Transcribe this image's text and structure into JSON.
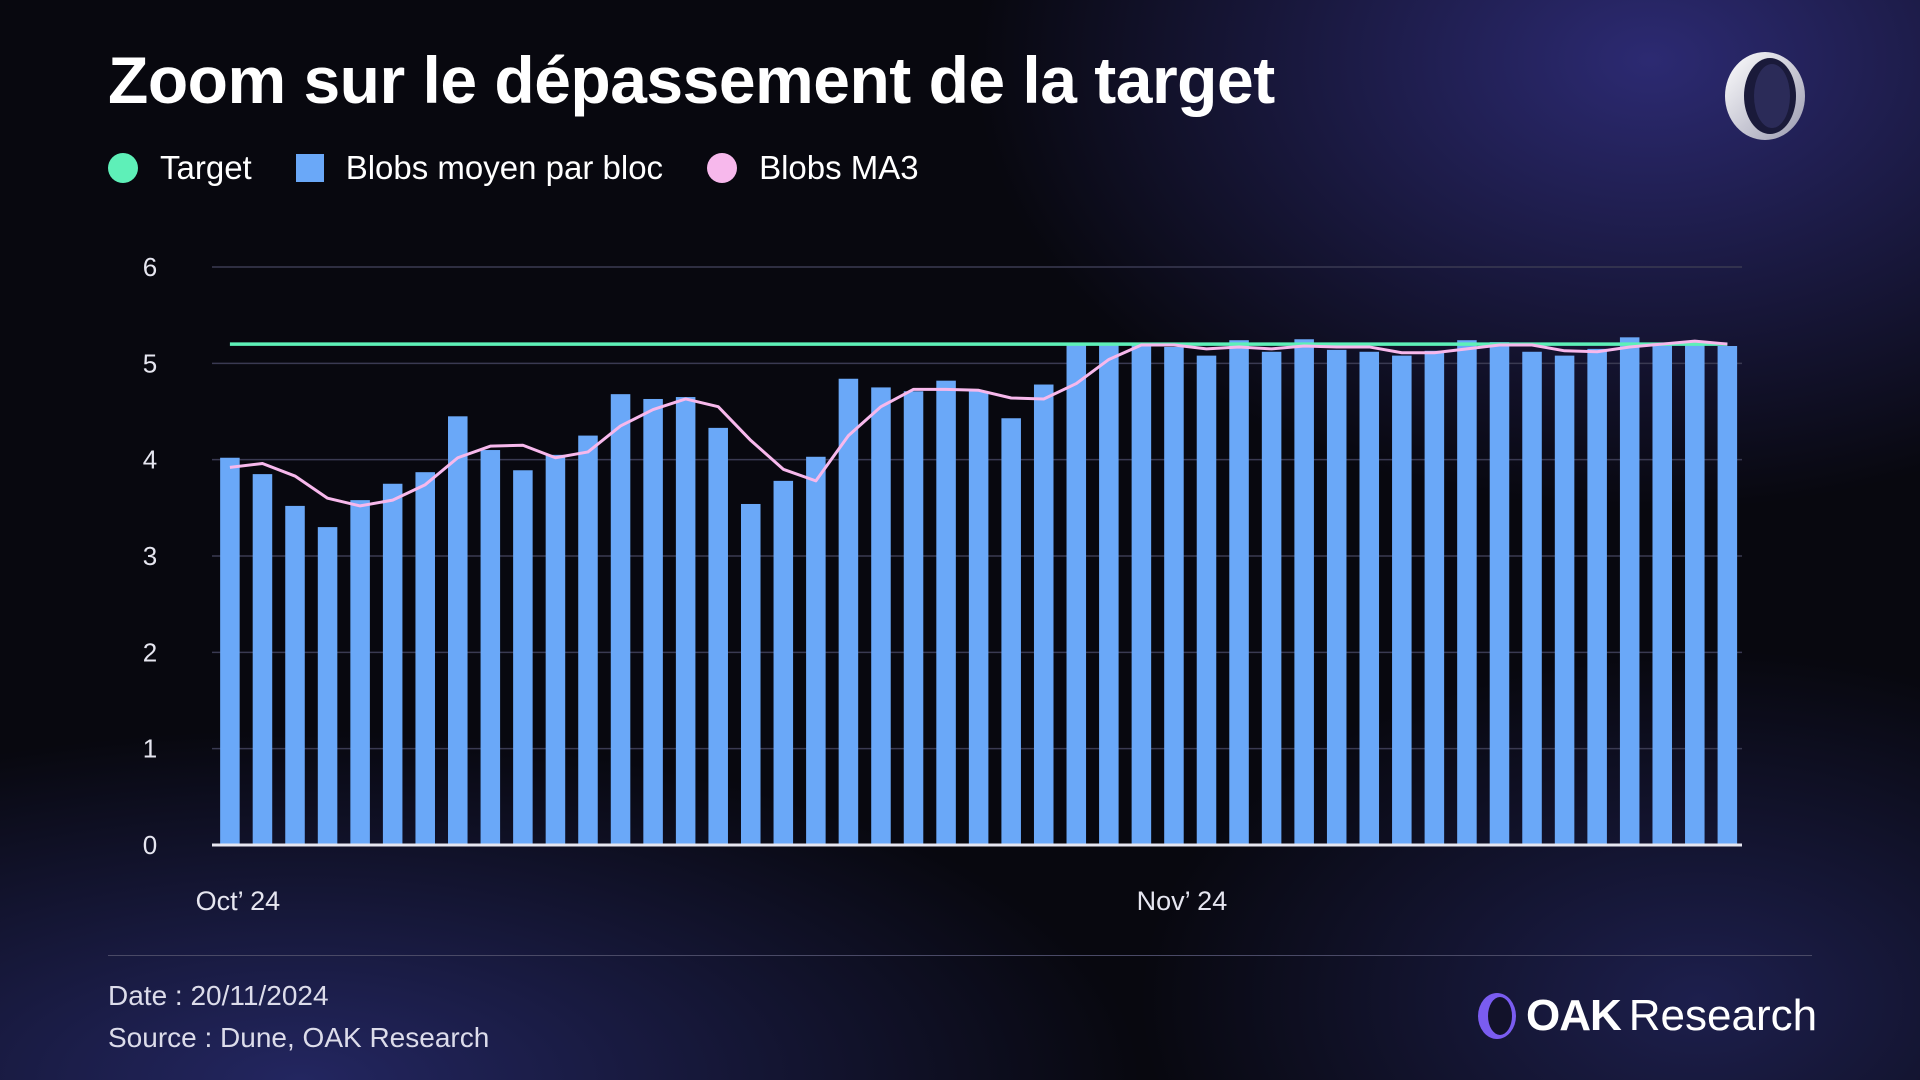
{
  "title": "Zoom sur le dépassement de la target",
  "legend": [
    {
      "label": "Target",
      "color": "#5ef0b8",
      "shape": "circle"
    },
    {
      "label": "Blobs moyen par bloc",
      "color": "#6aa8f8",
      "shape": "square"
    },
    {
      "label": "Blobs MA3",
      "color": "#f7b8ec",
      "shape": "circle"
    }
  ],
  "footer": {
    "date": "Date : 20/11/2024",
    "source": "Source : Dune, OAK Research"
  },
  "brand": {
    "bold": "OAK",
    "light": "Research",
    "icon": "oak-logo-icon"
  },
  "colors": {
    "target": "#5ef0b8",
    "bars": "#6aa8f8",
    "ma": "#f7b8ec",
    "grid": "#3a3a52",
    "axis": "#e6e6f0"
  },
  "chart_data": {
    "type": "bar",
    "x_tick_labels": [
      {
        "label": "Oct’ 24",
        "index": 0
      },
      {
        "label": "Nov’ 24",
        "index": 29
      }
    ],
    "yticks": [
      0,
      1,
      2,
      3,
      4,
      5,
      6
    ],
    "ylim": [
      0,
      6
    ],
    "grid": true,
    "legend_position": "top-left",
    "series": [
      {
        "name": "Blobs moyen par bloc",
        "type": "bar",
        "values": [
          4.02,
          3.85,
          3.52,
          3.3,
          3.58,
          3.75,
          3.87,
          4.45,
          4.1,
          3.89,
          4.05,
          4.25,
          4.68,
          4.63,
          4.65,
          4.33,
          3.54,
          3.78,
          4.03,
          4.84,
          4.75,
          4.71,
          4.82,
          4.71,
          4.43,
          4.78,
          5.19,
          5.19,
          5.2,
          5.17,
          5.08,
          5.24,
          5.12,
          5.25,
          5.14,
          5.12,
          5.08,
          5.13,
          5.24,
          5.22,
          5.12,
          5.08,
          5.15,
          5.27,
          5.2,
          5.21,
          5.18
        ]
      },
      {
        "name": "Blobs MA3",
        "type": "line",
        "values": [
          3.92,
          3.96,
          3.83,
          3.6,
          3.52,
          3.58,
          3.74,
          4.02,
          4.14,
          4.15,
          4.02,
          4.08,
          4.35,
          4.52,
          4.63,
          4.55,
          4.2,
          3.9,
          3.78,
          4.25,
          4.55,
          4.73,
          4.73,
          4.72,
          4.64,
          4.63,
          4.79,
          5.04,
          5.19,
          5.19,
          5.15,
          5.17,
          5.15,
          5.18,
          5.17,
          5.17,
          5.11,
          5.11,
          5.15,
          5.19,
          5.19,
          5.13,
          5.12,
          5.17,
          5.2,
          5.23,
          5.2
        ]
      },
      {
        "name": "Target",
        "type": "line",
        "values": [
          5.2,
          5.2,
          5.2,
          5.2,
          5.2,
          5.2,
          5.2,
          5.2,
          5.2,
          5.2,
          5.2,
          5.2,
          5.2,
          5.2,
          5.2,
          5.2,
          5.2,
          5.2,
          5.2,
          5.2,
          5.2,
          5.2,
          5.2,
          5.2,
          5.2,
          5.2,
          5.2,
          5.2,
          5.2,
          5.2,
          5.2,
          5.2,
          5.2,
          5.2,
          5.2,
          5.2,
          5.2,
          5.2,
          5.2,
          5.2,
          5.2,
          5.2,
          5.2,
          5.2,
          5.2,
          5.2,
          5.2
        ]
      }
    ]
  }
}
